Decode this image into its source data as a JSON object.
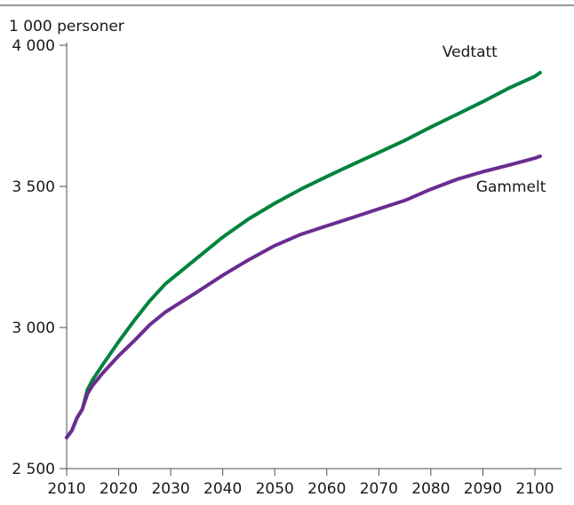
{
  "chart_data": {
    "type": "line",
    "title": "",
    "ylabel": "1 000 personer",
    "xlabel": "",
    "xlim": [
      2010,
      2100
    ],
    "ylim": [
      2500,
      4000
    ],
    "x_ticks": [
      2010,
      2020,
      2030,
      2040,
      2050,
      2060,
      2070,
      2080,
      2090,
      2100
    ],
    "x_tick_labels": [
      "2010",
      "2020",
      "2030",
      "2040",
      "2050",
      "2060",
      "2070",
      "2080",
      "2090",
      "2100"
    ],
    "y_ticks": [
      2500,
      3000,
      3500,
      4000
    ],
    "y_tick_labels": [
      "2 500",
      "3 000",
      "3 500",
      "4 000"
    ],
    "grid": false,
    "series": [
      {
        "name": "Vedtatt",
        "color": "#00843D",
        "x": [
          2010,
          2011,
          2012,
          2013,
          2014,
          2015,
          2017,
          2020,
          2023,
          2026,
          2029,
          2032,
          2035,
          2040,
          2045,
          2050,
          2055,
          2060,
          2065,
          2070,
          2075,
          2080,
          2085,
          2090,
          2095,
          2100,
          2101
        ],
        "y": [
          2610,
          2635,
          2680,
          2710,
          2780,
          2815,
          2870,
          2950,
          3025,
          3095,
          3155,
          3200,
          3245,
          3320,
          3385,
          3440,
          3490,
          3535,
          3578,
          3620,
          3663,
          3710,
          3755,
          3800,
          3848,
          3890,
          3903
        ]
      },
      {
        "name": "Gammelt",
        "color": "#6B2C91",
        "x": [
          2010,
          2011,
          2012,
          2013,
          2014,
          2015,
          2017,
          2020,
          2023,
          2026,
          2029,
          2032,
          2035,
          2040,
          2045,
          2050,
          2055,
          2060,
          2065,
          2070,
          2075,
          2080,
          2085,
          2090,
          2095,
          2100,
          2101
        ],
        "y": [
          2610,
          2635,
          2680,
          2710,
          2765,
          2795,
          2840,
          2900,
          2953,
          3010,
          3055,
          3090,
          3125,
          3185,
          3240,
          3290,
          3330,
          3360,
          3390,
          3420,
          3450,
          3490,
          3525,
          3552,
          3575,
          3600,
          3607
        ]
      }
    ]
  }
}
